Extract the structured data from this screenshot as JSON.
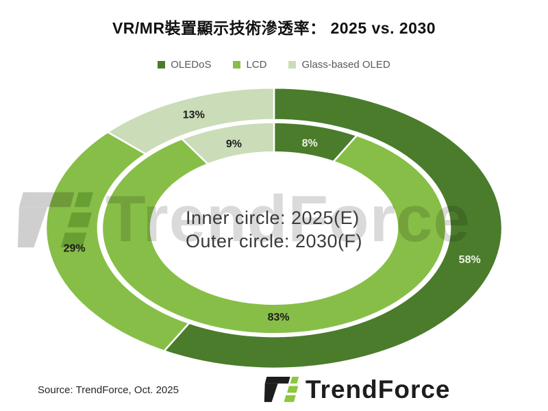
{
  "title": "VR/MR裝置顯示技術滲透率： 2025 vs. 2030",
  "legend": {
    "items": [
      {
        "label": "OLEDoS",
        "color": "#4a7c2c"
      },
      {
        "label": "LCD",
        "color": "#87be47"
      },
      {
        "label": "Glass-based OLED",
        "color": "#cbdcb8"
      }
    ]
  },
  "chart_data": {
    "type": "donut",
    "title": "VR/MR裝置顯示技術滲透率： 2025 vs. 2030",
    "categories": [
      "OLEDoS",
      "LCD",
      "Glass-based OLED"
    ],
    "colors": [
      "#4a7c2c",
      "#87be47",
      "#cbdcb8"
    ],
    "label_colors": [
      "#eef3e2",
      "#1d1d1b",
      "#1d1d1b"
    ],
    "direction": "clockwise",
    "start_angle_deg": 0,
    "rings": [
      {
        "name": "inner",
        "period": "2025(E)",
        "values": [
          8,
          83,
          9
        ]
      },
      {
        "name": "outer",
        "period": "2030(F)",
        "values": [
          58,
          29,
          13
        ]
      }
    ],
    "center_text": [
      "Inner circle: 2025(E)",
      "Outer circle: 2030(F)"
    ],
    "legend_position": "top"
  },
  "watermark": {
    "text": "TrendForce"
  },
  "footer": {
    "source": "Source: TrendForce, Oct. 2025",
    "brand_text": "TrendForce"
  }
}
